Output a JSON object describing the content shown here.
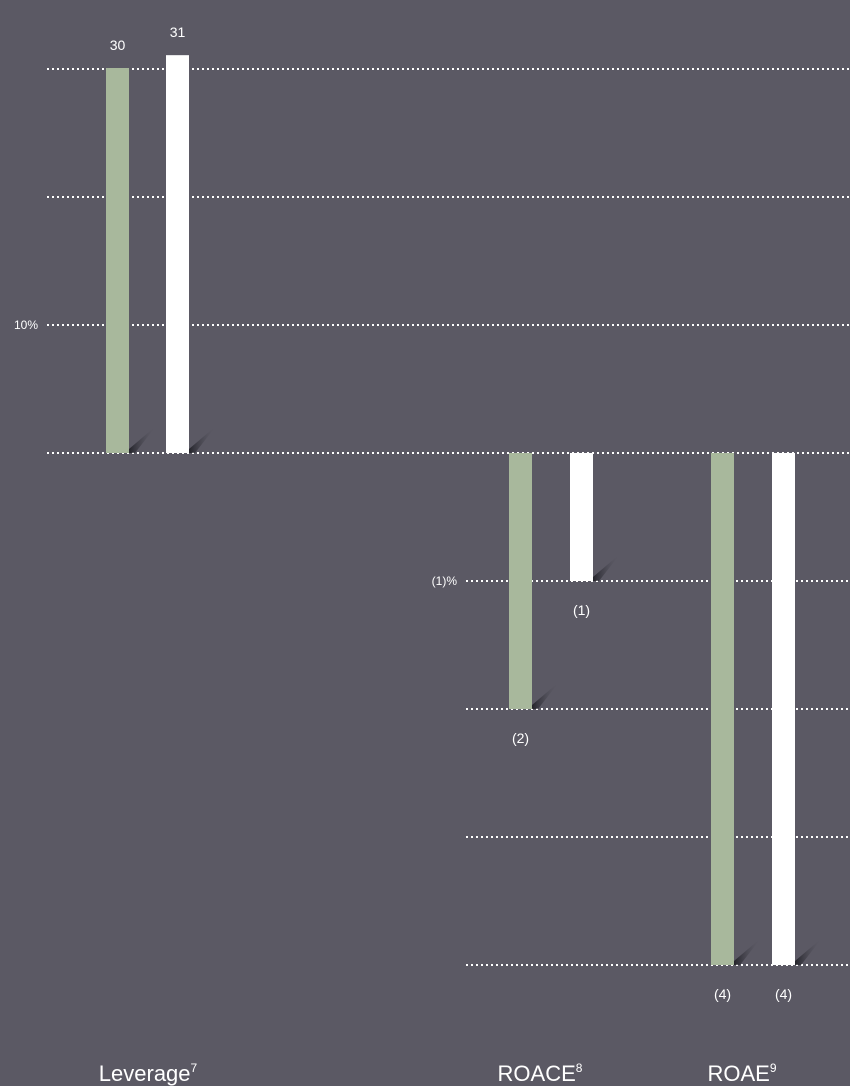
{
  "chart_data": [
    {
      "type": "bar",
      "categories": [
        "Leverage"
      ],
      "category_footnotes": [
        "7"
      ],
      "series": [
        {
          "color": "#a8b89c",
          "values": [
            30
          ]
        },
        {
          "color": "#ffffff",
          "values": [
            31
          ]
        }
      ],
      "value_labels": [
        [
          "30"
        ],
        [
          "31"
        ]
      ],
      "ytick_label": "10%",
      "ylim": [
        0,
        30
      ],
      "grid": true
    },
    {
      "type": "bar",
      "categories": [
        "ROACE",
        "ROAE"
      ],
      "category_footnotes": [
        "8",
        "9"
      ],
      "series": [
        {
          "color": "#a8b89c",
          "values": [
            -2,
            -4
          ]
        },
        {
          "color": "#ffffff",
          "values": [
            -1,
            -4
          ]
        }
      ],
      "value_labels": [
        [
          "(2)",
          "(4)"
        ],
        [
          "(1)",
          "(4)"
        ]
      ],
      "ytick_label": "(1)%",
      "ylim": [
        -4,
        0
      ],
      "grid": true
    }
  ]
}
